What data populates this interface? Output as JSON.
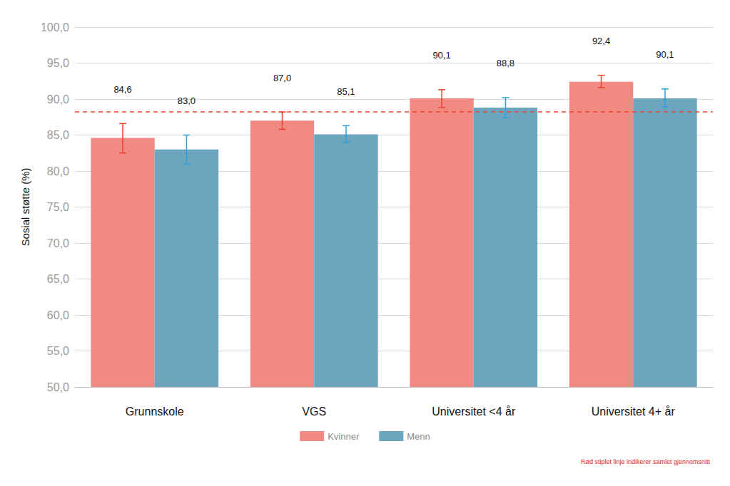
{
  "chart_data": {
    "type": "bar",
    "y_label": "Sosial støtte (%)",
    "categories": [
      "Grunnskole",
      "VGS",
      "Universitet <4 år",
      "Universitet 4+ år"
    ],
    "series": [
      {
        "name": "Kvinner",
        "color": "#f08a83",
        "values": [
          84.6,
          87.0,
          90.1,
          92.4
        ],
        "value_labels": [
          "84,6",
          "87,0",
          "90,1",
          "92,4"
        ],
        "error_low": [
          82.5,
          85.8,
          88.8,
          91.6
        ],
        "error_high": [
          86.6,
          88.2,
          91.3,
          93.3
        ]
      },
      {
        "name": "Menn",
        "color": "#6ba5be",
        "values": [
          83.0,
          85.1,
          88.8,
          90.1
        ],
        "value_labels": [
          "83,0",
          "85,1",
          "88,8",
          "90,1"
        ],
        "error_low": [
          81.0,
          84.0,
          87.4,
          88.9
        ],
        "error_high": [
          85.0,
          86.3,
          90.2,
          91.4
        ]
      }
    ],
    "average_line": 88.2,
    "note": "Rød stiplet linje indikerer samlet gjennomsnitt",
    "ylim": [
      50,
      100
    ],
    "yticks": [
      {
        "value": 50,
        "label": "50,0"
      },
      {
        "value": 55,
        "label": "55,0"
      },
      {
        "value": 60,
        "label": "60,0"
      },
      {
        "value": 65,
        "label": "65,0"
      },
      {
        "value": 70,
        "label": "70,0"
      },
      {
        "value": 75,
        "label": "75,0"
      },
      {
        "value": 80,
        "label": "80,0"
      },
      {
        "value": 85,
        "label": "85,0"
      },
      {
        "value": 90,
        "label": "90,0"
      },
      {
        "value": 95,
        "label": "95,0"
      },
      {
        "value": 100,
        "label": "100,0"
      }
    ],
    "grid": true,
    "legend": "bottom",
    "data_labels": true
  }
}
